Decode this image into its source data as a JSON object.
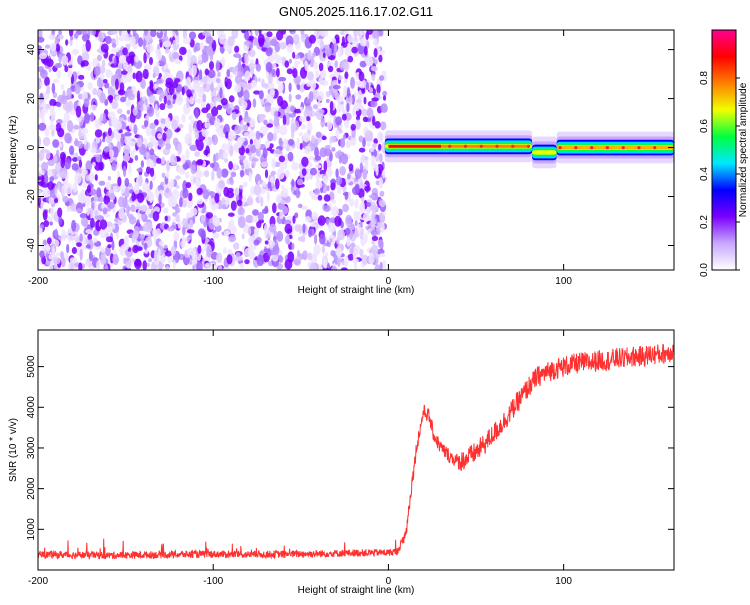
{
  "figure": {
    "title": "GN05.2025.116.17.02.G11"
  },
  "chart_data": [
    {
      "type": "heatmap",
      "xlabel": "Height of straight line (km)",
      "ylabel": "Frequency (Hz)",
      "xlim": [
        -200,
        163
      ],
      "ylim": [
        -50,
        48
      ],
      "xticks": [
        -200,
        -100,
        0,
        100
      ],
      "yticks": [
        -40,
        -20,
        0,
        20,
        40
      ],
      "noise_region": {
        "x": [
          -200,
          -2
        ],
        "y": [
          -50,
          48
        ],
        "description_values": "scattered low-amplitude speckle"
      },
      "signal_band": [
        {
          "x": [
            -2,
            82
          ],
          "frequency": 0.5
        },
        {
          "x": [
            82,
            96
          ],
          "frequency": -2
        },
        {
          "x": [
            96,
            163
          ],
          "frequency": 0
        }
      ],
      "peak_segments": [
        {
          "x": [
            0,
            30
          ],
          "amplitude": 1.0
        },
        {
          "x": [
            30,
            80
          ],
          "amplitude": 0.75
        },
        {
          "x": [
            96,
            163
          ],
          "amplitude": 0.7
        }
      ],
      "colorbar": {
        "label": "Normalized spectral amplitude",
        "ticks": [
          0.0,
          0.2,
          0.4,
          0.6,
          0.8
        ],
        "colors": [
          "#ffffff",
          "#c8a8ff",
          "#7a00ff",
          "#0000ff",
          "#00e8ff",
          "#00ff40",
          "#f0ff00",
          "#ff8000",
          "#ff0000",
          "#ff0090"
        ]
      },
      "grid": false
    },
    {
      "type": "line",
      "xlabel": "Height of straight line (km)",
      "ylabel": "SNR (10 * v/v)",
      "xlim": [
        -200,
        163
      ],
      "ylim": [
        0,
        5900
      ],
      "xticks": [
        -200,
        -100,
        0,
        100
      ],
      "yticks": [
        1000,
        2000,
        3000,
        4000,
        5000
      ],
      "color": "#ff3030",
      "grid": false,
      "series": [
        {
          "x": [
            -200,
            -180,
            -160,
            -140,
            -120,
            -100,
            -80,
            -60,
            -40,
            -20,
            0,
            5,
            10,
            13,
            16,
            20,
            23,
            26,
            30,
            35,
            40,
            45,
            50,
            55,
            60,
            65,
            70,
            75,
            80,
            85,
            90,
            95,
            100,
            105,
            110,
            115,
            120,
            125,
            130,
            135,
            140,
            145,
            150,
            155,
            160,
            163
          ],
          "y": [
            380,
            370,
            360,
            370,
            380,
            390,
            380,
            390,
            400,
            420,
            430,
            450,
            900,
            2000,
            3000,
            3900,
            3800,
            3300,
            3000,
            2800,
            2650,
            2750,
            2900,
            3100,
            3350,
            3600,
            3900,
            4200,
            4500,
            4750,
            4850,
            4950,
            5000,
            5050,
            5100,
            5100,
            5150,
            5150,
            5200,
            5200,
            5250,
            5250,
            5300,
            5300,
            5350,
            5400
          ]
        }
      ]
    }
  ]
}
